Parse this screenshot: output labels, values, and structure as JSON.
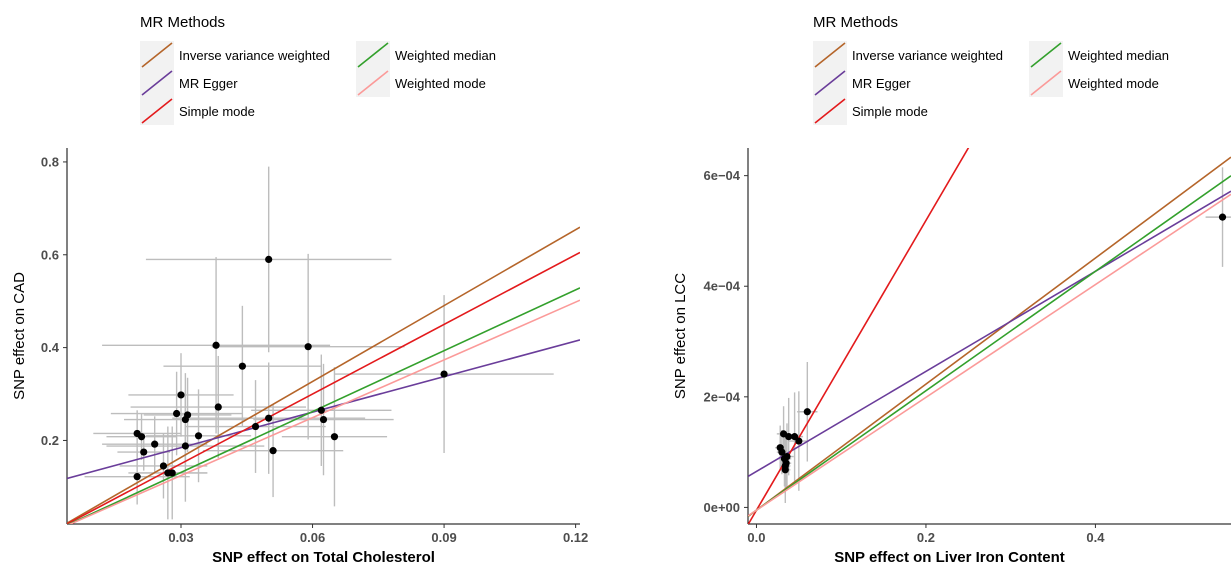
{
  "chart_data": [
    {
      "type": "scatter",
      "title": "",
      "xlabel": "SNP effect on Total Cholesterol",
      "ylabel": "SNP effect on CAD",
      "xlim": [
        0.004,
        0.121
      ],
      "ylim": [
        0.02,
        0.83
      ],
      "xticks": [
        0.03,
        0.06,
        0.09,
        0.12
      ],
      "xtick_labels": [
        "0.03",
        "0.06",
        "0.09",
        "0.12"
      ],
      "yticks": [
        0.2,
        0.4,
        0.6,
        0.8
      ],
      "ytick_labels": [
        "0.2",
        "0.4",
        "0.6",
        "0.8"
      ],
      "grid": false,
      "legend_title": "MR Methods",
      "legend_position": "top-left",
      "points": [
        {
          "x": 0.02,
          "y": 0.122,
          "xerr": 0.012,
          "yerr": 0.06
        },
        {
          "x": 0.02,
          "y": 0.215,
          "xerr": 0.01,
          "yerr": 0.05
        },
        {
          "x": 0.021,
          "y": 0.208,
          "xerr": 0.008,
          "yerr": 0.05
        },
        {
          "x": 0.0215,
          "y": 0.175,
          "xerr": 0.006,
          "yerr": 0.04
        },
        {
          "x": 0.024,
          "y": 0.192,
          "xerr": 0.012,
          "yerr": 0.06
        },
        {
          "x": 0.026,
          "y": 0.145,
          "xerr": 0.01,
          "yerr": 0.07
        },
        {
          "x": 0.027,
          "y": 0.13,
          "xerr": 0.009,
          "yerr": 0.1
        },
        {
          "x": 0.028,
          "y": 0.13,
          "xerr": 0.008,
          "yerr": 0.1
        },
        {
          "x": 0.029,
          "y": 0.258,
          "xerr": 0.015,
          "yerr": 0.09
        },
        {
          "x": 0.03,
          "y": 0.298,
          "xerr": 0.012,
          "yerr": 0.09
        },
        {
          "x": 0.031,
          "y": 0.188,
          "xerr": 0.018,
          "yerr": 0.12
        },
        {
          "x": 0.031,
          "y": 0.245,
          "xerr": 0.014,
          "yerr": 0.1
        },
        {
          "x": 0.0315,
          "y": 0.255,
          "xerr": 0.01,
          "yerr": 0.08
        },
        {
          "x": 0.034,
          "y": 0.21,
          "xerr": 0.012,
          "yerr": 0.1
        },
        {
          "x": 0.038,
          "y": 0.405,
          "xerr": 0.026,
          "yerr": 0.19
        },
        {
          "x": 0.0385,
          "y": 0.272,
          "xerr": 0.02,
          "yerr": 0.11
        },
        {
          "x": 0.044,
          "y": 0.36,
          "xerr": 0.018,
          "yerr": 0.13
        },
        {
          "x": 0.047,
          "y": 0.23,
          "xerr": 0.016,
          "yerr": 0.1
        },
        {
          "x": 0.05,
          "y": 0.248,
          "xerr": 0.022,
          "yerr": 0.12
        },
        {
          "x": 0.05,
          "y": 0.59,
          "xerr": 0.028,
          "yerr": 0.2
        },
        {
          "x": 0.051,
          "y": 0.178,
          "xerr": 0.016,
          "yerr": 0.1
        },
        {
          "x": 0.059,
          "y": 0.402,
          "xerr": 0.022,
          "yerr": 0.2
        },
        {
          "x": 0.062,
          "y": 0.265,
          "xerr": 0.016,
          "yerr": 0.12
        },
        {
          "x": 0.0625,
          "y": 0.245,
          "xerr": 0.016,
          "yerr": 0.12
        },
        {
          "x": 0.065,
          "y": 0.208,
          "xerr": 0.012,
          "yerr": 0.15
        },
        {
          "x": 0.09,
          "y": 0.343,
          "xerr": 0.025,
          "yerr": 0.17
        }
      ],
      "series": [
        {
          "name": "Inverse variance weighted",
          "color": "#b5652a",
          "intercept": 0.0,
          "slope": 5.45
        },
        {
          "name": "MR Egger",
          "color": "#6a3d9a",
          "intercept": 0.108,
          "slope": 2.55
        },
        {
          "name": "Simple mode",
          "color": "#e31a1c",
          "intercept": 0.0,
          "slope": 5.0
        },
        {
          "name": "Weighted median",
          "color": "#33a02c",
          "intercept": 0.0,
          "slope": 4.37
        },
        {
          "name": "Weighted mode",
          "color": "#fb9a99",
          "intercept": 0.0,
          "slope": 4.15
        }
      ]
    },
    {
      "type": "scatter",
      "title": "",
      "xlabel": "SNP effect on Liver Iron Content",
      "ylabel": "SNP effect on LCC",
      "xlim": [
        -0.01,
        0.56
      ],
      "ylim": [
        -3e-05,
        0.00065
      ],
      "xticks": [
        0.0,
        0.2,
        0.4
      ],
      "xtick_labels": [
        "0.0",
        "0.2",
        "0.4"
      ],
      "yticks": [
        0.0,
        0.0002,
        0.0004,
        0.0006
      ],
      "ytick_labels": [
        "0e+00",
        "2e−04",
        "4e−04",
        "6e−04"
      ],
      "grid": false,
      "legend_title": "MR Methods",
      "legend_position": "top-left",
      "points": [
        {
          "x": 0.028,
          "y": 0.000108,
          "xerr": 0.006,
          "yerr": 4e-05
        },
        {
          "x": 0.03,
          "y": 0.0001,
          "xerr": 0.006,
          "yerr": 4e-05
        },
        {
          "x": 0.032,
          "y": 0.000133,
          "xerr": 0.008,
          "yerr": 5e-05
        },
        {
          "x": 0.033,
          "y": 8.8e-05,
          "xerr": 0.008,
          "yerr": 5e-05
        },
        {
          "x": 0.034,
          "y": 7.5e-05,
          "xerr": 0.006,
          "yerr": 5e-05
        },
        {
          "x": 0.034,
          "y": 6.8e-05,
          "xerr": 0.006,
          "yerr": 6e-05
        },
        {
          "x": 0.035,
          "y": 8e-05,
          "xerr": 0.006,
          "yerr": 5e-05
        },
        {
          "x": 0.036,
          "y": 9.2e-05,
          "xerr": 0.008,
          "yerr": 6e-05
        },
        {
          "x": 0.038,
          "y": 0.000128,
          "xerr": 0.008,
          "yerr": 7e-05
        },
        {
          "x": 0.045,
          "y": 0.000128,
          "xerr": 0.01,
          "yerr": 8e-05
        },
        {
          "x": 0.05,
          "y": 0.00012,
          "xerr": 0.012,
          "yerr": 9e-05
        },
        {
          "x": 0.06,
          "y": 0.000173,
          "xerr": 0.012,
          "yerr": 9e-05
        },
        {
          "x": 0.55,
          "y": 0.000525,
          "xerr": 0.02,
          "yerr": 9e-05
        }
      ],
      "series": [
        {
          "name": "Inverse variance weighted",
          "color": "#b5652a",
          "intercept": -5e-06,
          "slope": 0.00114
        },
        {
          "name": "MR Egger",
          "color": "#6a3d9a",
          "intercept": 6.5e-05,
          "slope": 0.000905
        },
        {
          "name": "Simple mode",
          "color": "#e31a1c",
          "intercept": -5e-06,
          "slope": 0.00262
        },
        {
          "name": "Weighted median",
          "color": "#33a02c",
          "intercept": -5e-06,
          "slope": 0.00108
        },
        {
          "name": "Weighted mode",
          "color": "#fb9a99",
          "intercept": -5e-06,
          "slope": 0.00102
        }
      ]
    }
  ]
}
